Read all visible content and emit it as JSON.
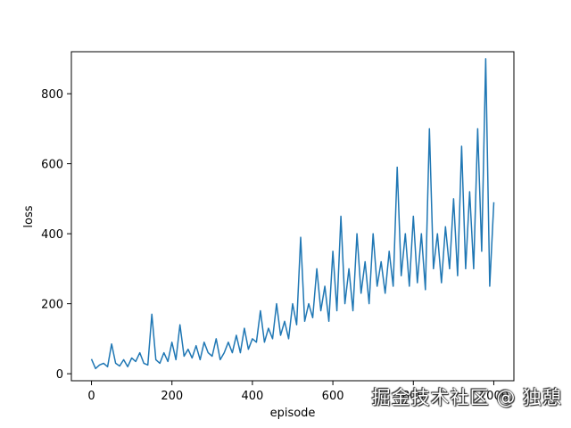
{
  "chart_data": {
    "type": "line",
    "title": "",
    "xlabel": "episode",
    "ylabel": "loss",
    "xlim": [
      -50,
      1050
    ],
    "ylim": [
      -20,
      920
    ],
    "xticks": [
      0,
      200,
      400,
      600,
      800,
      1000
    ],
    "yticks": [
      0,
      200,
      400,
      600,
      800
    ],
    "xtick_labels": [
      "0",
      "200",
      "400",
      "600",
      "800",
      "1000"
    ],
    "ytick_labels": [
      "0",
      "200",
      "400",
      "600",
      "800"
    ],
    "grid": false,
    "legend": "none",
    "line_color": "#1f77b4",
    "series": [
      {
        "x": [
          0,
          10,
          20,
          30,
          40,
          50,
          60,
          70,
          80,
          90,
          100,
          110,
          120,
          130,
          140,
          150,
          160,
          170,
          180,
          190,
          200,
          210,
          220,
          230,
          240,
          250,
          260,
          270,
          280,
          290,
          300,
          310,
          320,
          330,
          340,
          350,
          360,
          370,
          380,
          390,
          400,
          410,
          420,
          430,
          440,
          450,
          460,
          470,
          480,
          490,
          500,
          510,
          520,
          530,
          540,
          550,
          560,
          570,
          580,
          590,
          600,
          610,
          620,
          630,
          640,
          650,
          660,
          670,
          680,
          690,
          700,
          710,
          720,
          730,
          740,
          750,
          760,
          770,
          780,
          790,
          800,
          810,
          820,
          830,
          840,
          850,
          860,
          870,
          880,
          890,
          900,
          910,
          920,
          930,
          940,
          950,
          960,
          970,
          980,
          990,
          1000
        ],
        "values": [
          42,
          15,
          25,
          30,
          20,
          85,
          30,
          22,
          40,
          20,
          45,
          35,
          60,
          30,
          25,
          170,
          40,
          30,
          60,
          35,
          90,
          40,
          140,
          50,
          70,
          45,
          80,
          40,
          90,
          60,
          50,
          100,
          40,
          60,
          90,
          60,
          110,
          60,
          130,
          70,
          100,
          90,
          180,
          90,
          130,
          100,
          200,
          110,
          150,
          100,
          200,
          140,
          390,
          150,
          200,
          160,
          300,
          180,
          250,
          150,
          350,
          180,
          450,
          200,
          300,
          180,
          400,
          230,
          320,
          200,
          400,
          250,
          320,
          230,
          350,
          250,
          590,
          280,
          400,
          250,
          450,
          260,
          400,
          240,
          700,
          300,
          400,
          260,
          420,
          300,
          500,
          280,
          650,
          300,
          520,
          300,
          700,
          350,
          900,
          250,
          490
        ]
      }
    ]
  },
  "watermark": {
    "text": "掘金技术社区 @ 独憩"
  }
}
